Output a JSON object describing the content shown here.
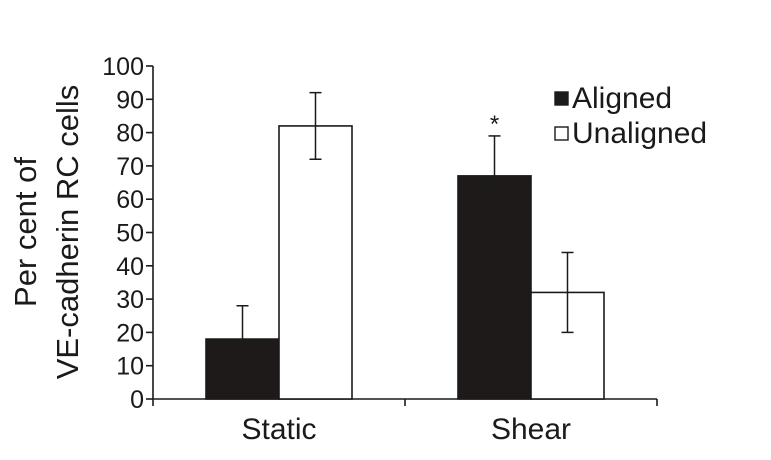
{
  "chart_data": {
    "type": "bar",
    "categories": [
      "Static",
      "Shear"
    ],
    "series": [
      {
        "name": "Aligned",
        "values": [
          18,
          67
        ],
        "errors": [
          10,
          12
        ],
        "color": "#1e1a1a"
      },
      {
        "name": "Unaligned",
        "values": [
          82,
          32
        ],
        "errors": [
          10,
          12
        ],
        "color": "#ffffff"
      }
    ],
    "ylabel_lines": [
      "Per cent of",
      "VE-cadherin RC cells"
    ],
    "ylim": [
      0,
      100
    ],
    "yticks": [
      0,
      10,
      20,
      30,
      40,
      50,
      60,
      70,
      80,
      90,
      100
    ],
    "ytick_labels": [
      "0",
      "10",
      "20",
      "30",
      "40",
      "50",
      "60",
      "70",
      "80",
      "90",
      "100"
    ],
    "annotations": [
      {
        "category": "Shear",
        "series": "Aligned",
        "text": "*"
      }
    ],
    "legend": {
      "position": "top-right",
      "entries": [
        "Aligned",
        "Unaligned"
      ]
    },
    "grid": false
  }
}
